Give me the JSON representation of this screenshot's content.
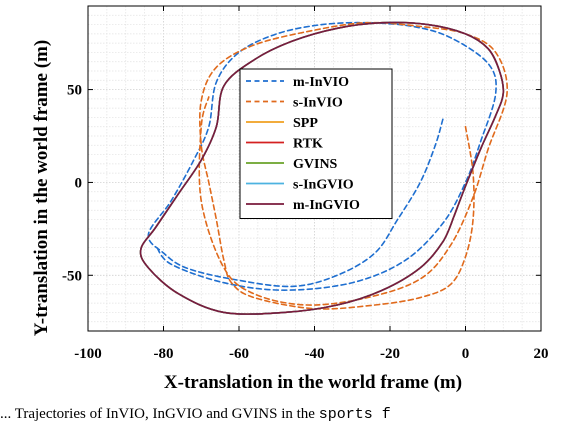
{
  "chart_data": {
    "type": "line",
    "title": "",
    "xlabel": "X-translation in the world frame (m)",
    "ylabel": "Y-translation in the world frame (m)",
    "xlim": [
      -100,
      20
    ],
    "ylim": [
      -80,
      95
    ],
    "xticks": [
      -100,
      -80,
      -60,
      -40,
      -20,
      0,
      20
    ],
    "yticks": [
      -50,
      0,
      50
    ],
    "grid": true,
    "minor_grid": true,
    "legend_position": "center",
    "series": [
      {
        "name": "m-InVIO",
        "color": "#1f6fd0",
        "dash": "dashed",
        "points": [
          [
            -6,
            34
          ],
          [
            -8,
            20
          ],
          [
            -12,
            0
          ],
          [
            -18,
            -20
          ],
          [
            -24,
            -38
          ],
          [
            -34,
            -50
          ],
          [
            -46,
            -56
          ],
          [
            -62,
            -52
          ],
          [
            -74,
            -46
          ],
          [
            -80,
            -38
          ],
          [
            -84,
            -28
          ],
          [
            -78,
            -10
          ],
          [
            -72,
            12
          ],
          [
            -68,
            30
          ],
          [
            -66,
            54
          ],
          [
            -60,
            70
          ],
          [
            -50,
            80
          ],
          [
            -38,
            85
          ],
          [
            -26,
            86
          ],
          [
            -14,
            84
          ],
          [
            -4,
            78
          ],
          [
            6,
            64
          ],
          [
            8,
            48
          ],
          [
            4,
            22
          ],
          [
            0,
            0
          ],
          [
            -6,
            -22
          ],
          [
            -16,
            -42
          ],
          [
            -30,
            -54
          ],
          [
            -48,
            -58
          ],
          [
            -64,
            -54
          ],
          [
            -78,
            -44
          ],
          [
            -82,
            -34
          ]
        ]
      },
      {
        "name": "s-InVIO",
        "color": "#e06a1c",
        "dash": "dashed",
        "points": [
          [
            0,
            30
          ],
          [
            2,
            5
          ],
          [
            2,
            -20
          ],
          [
            0,
            -40
          ],
          [
            -4,
            -55
          ],
          [
            -12,
            -62
          ],
          [
            -24,
            -66
          ],
          [
            -40,
            -68
          ],
          [
            -56,
            -62
          ],
          [
            -62,
            -54
          ],
          [
            -64,
            -42
          ],
          [
            -66,
            -20
          ],
          [
            -68,
            0
          ],
          [
            -70,
            20
          ],
          [
            -70,
            44
          ],
          [
            -66,
            62
          ],
          [
            -56,
            74
          ],
          [
            -40,
            82
          ],
          [
            -26,
            86
          ],
          [
            -12,
            84
          ],
          [
            0,
            80
          ],
          [
            8,
            70
          ],
          [
            11,
            48
          ],
          [
            6,
            18
          ],
          [
            2,
            -8
          ],
          [
            -4,
            -34
          ],
          [
            -12,
            -52
          ],
          [
            -26,
            -62
          ],
          [
            -42,
            -66
          ],
          [
            -56,
            -60
          ],
          [
            -64,
            -46
          ],
          [
            -70,
            -10
          ],
          [
            -70,
            30
          ],
          [
            -68,
            46
          ]
        ]
      },
      {
        "name": "SPP",
        "color": "#f0a020",
        "dash": "solid",
        "points": [
          [
            -3,
            -18
          ],
          [
            -6,
            -32
          ],
          [
            -12,
            -46
          ],
          [
            -22,
            -58
          ],
          [
            -34,
            -66
          ],
          [
            -48,
            -70
          ],
          [
            -64,
            -70
          ],
          [
            -76,
            -60
          ],
          [
            -84,
            -46
          ],
          [
            -86,
            -36
          ],
          [
            -82,
            -24
          ],
          [
            -76,
            -6
          ],
          [
            -70,
            12
          ],
          [
            -66,
            30
          ],
          [
            -64,
            52
          ],
          [
            -56,
            66
          ],
          [
            -46,
            76
          ],
          [
            -34,
            83
          ],
          [
            -22,
            86
          ],
          [
            -10,
            85
          ],
          [
            0,
            80
          ],
          [
            6,
            72
          ],
          [
            9,
            60
          ],
          [
            10,
            48
          ],
          [
            8,
            36
          ],
          [
            4,
            18
          ],
          [
            0,
            -2
          ],
          [
            -3,
            -18
          ]
        ]
      },
      {
        "name": "RTK",
        "color": "#d42020",
        "dash": "solid",
        "points": [
          [
            -3,
            -18
          ],
          [
            -6,
            -32
          ],
          [
            -12,
            -46
          ],
          [
            -22,
            -58
          ],
          [
            -34,
            -66
          ],
          [
            -48,
            -70
          ],
          [
            -64,
            -70
          ],
          [
            -76,
            -60
          ],
          [
            -84,
            -46
          ],
          [
            -86,
            -36
          ],
          [
            -82,
            -24
          ],
          [
            -76,
            -6
          ],
          [
            -70,
            12
          ],
          [
            -66,
            30
          ],
          [
            -64,
            52
          ],
          [
            -56,
            66
          ],
          [
            -46,
            76
          ],
          [
            -34,
            83
          ],
          [
            -22,
            86
          ],
          [
            -10,
            85
          ],
          [
            0,
            80
          ],
          [
            6,
            72
          ],
          [
            9,
            60
          ],
          [
            10,
            48
          ],
          [
            8,
            36
          ],
          [
            4,
            18
          ],
          [
            0,
            -2
          ],
          [
            -3,
            -18
          ]
        ]
      },
      {
        "name": "GVINS",
        "color": "#6aa22a",
        "dash": "solid",
        "points": [
          [
            -3,
            -18
          ],
          [
            -6,
            -32
          ],
          [
            -12,
            -46
          ],
          [
            -22,
            -58
          ],
          [
            -34,
            -66
          ],
          [
            -48,
            -70
          ],
          [
            -64,
            -70
          ],
          [
            -76,
            -60
          ],
          [
            -84,
            -46
          ],
          [
            -86,
            -36
          ],
          [
            -82,
            -24
          ],
          [
            -76,
            -6
          ],
          [
            -70,
            12
          ],
          [
            -66,
            30
          ],
          [
            -64,
            52
          ],
          [
            -56,
            66
          ],
          [
            -46,
            76
          ],
          [
            -34,
            83
          ],
          [
            -22,
            86
          ],
          [
            -10,
            85
          ],
          [
            0,
            80
          ],
          [
            6,
            72
          ],
          [
            9,
            60
          ],
          [
            10,
            48
          ],
          [
            8,
            36
          ],
          [
            4,
            18
          ],
          [
            0,
            -2
          ],
          [
            -3,
            -18
          ]
        ]
      },
      {
        "name": "s-InGVIO",
        "color": "#4cb3e0",
        "dash": "solid",
        "points": [
          [
            -3,
            -18
          ],
          [
            -6,
            -32
          ],
          [
            -12,
            -46
          ],
          [
            -22,
            -58
          ],
          [
            -34,
            -66
          ],
          [
            -48,
            -70
          ],
          [
            -64,
            -70
          ],
          [
            -76,
            -60
          ],
          [
            -84,
            -46
          ],
          [
            -86,
            -36
          ],
          [
            -82,
            -24
          ],
          [
            -76,
            -6
          ],
          [
            -70,
            12
          ],
          [
            -66,
            30
          ],
          [
            -64,
            52
          ],
          [
            -56,
            66
          ],
          [
            -46,
            76
          ],
          [
            -34,
            83
          ],
          [
            -22,
            86
          ],
          [
            -10,
            85
          ],
          [
            0,
            80
          ],
          [
            6,
            72
          ],
          [
            9,
            60
          ],
          [
            10,
            48
          ],
          [
            8,
            36
          ],
          [
            4,
            18
          ],
          [
            0,
            -2
          ],
          [
            -3,
            -18
          ]
        ]
      },
      {
        "name": "m-InGVIO",
        "color": "#7a1a3c",
        "dash": "solid",
        "points": [
          [
            -3,
            -18
          ],
          [
            -6,
            -32
          ],
          [
            -12,
            -46
          ],
          [
            -22,
            -58
          ],
          [
            -34,
            -66
          ],
          [
            -48,
            -70
          ],
          [
            -64,
            -70
          ],
          [
            -76,
            -60
          ],
          [
            -84,
            -46
          ],
          [
            -86,
            -36
          ],
          [
            -82,
            -24
          ],
          [
            -76,
            -6
          ],
          [
            -70,
            12
          ],
          [
            -66,
            30
          ],
          [
            -64,
            52
          ],
          [
            -56,
            66
          ],
          [
            -46,
            76
          ],
          [
            -34,
            83
          ],
          [
            -22,
            86
          ],
          [
            -10,
            85
          ],
          [
            0,
            80
          ],
          [
            6,
            72
          ],
          [
            9,
            60
          ],
          [
            10,
            48
          ],
          [
            8,
            36
          ],
          [
            4,
            18
          ],
          [
            0,
            -2
          ],
          [
            -3,
            -18
          ]
        ]
      }
    ]
  },
  "caption": {
    "prefix": "...   Trajectories of InVIO, InGVIO and GVINS in the ",
    "code": "sports f"
  }
}
